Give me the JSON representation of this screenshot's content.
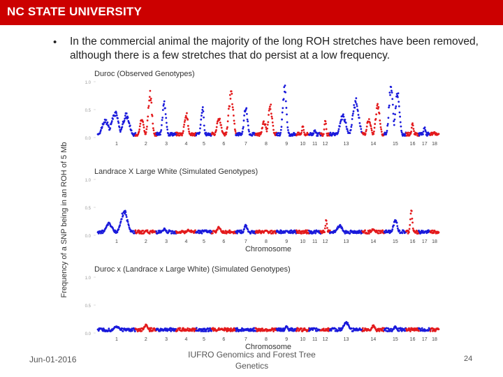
{
  "header": {
    "brand": "NC STATE UNIVERSITY",
    "color": "#cc0000"
  },
  "slide": {
    "bullet": "•",
    "text": "In the commercial animal the majority of the long ROH stretches have been removed, although there is a few stretches that do persist at a low frequency."
  },
  "footer": {
    "date": "Jun-01-2016",
    "conference": "IUFRO Genomics and Forest Tree Genetics",
    "page": "24"
  },
  "chart_data": {
    "type": "scatter",
    "ylabel": "Frequency of a SNP being in an ROH of 5 Mb",
    "colors": {
      "odd": "#1a1adb",
      "even": "#e31a1c"
    },
    "chromosomes": [
      "1",
      "2",
      "3",
      "4",
      "5",
      "6",
      "7",
      "8",
      "9",
      "10",
      "11",
      "12",
      "13",
      "14",
      "15",
      "16",
      "17",
      "18"
    ],
    "panels": [
      {
        "title": "Duroc (Observed Genotypes)",
        "xlabel": "",
        "ylim": [
          0,
          1
        ],
        "yticks": [
          "0.0",
          "0.5",
          "1.0"
        ],
        "peaks": [
          {
            "chr": 1,
            "pos": 0.2,
            "value": 0.32
          },
          {
            "chr": 1,
            "pos": 0.45,
            "value": 0.48
          },
          {
            "chr": 1,
            "pos": 0.75,
            "value": 0.42
          },
          {
            "chr": 2,
            "pos": 0.3,
            "value": 0.35
          },
          {
            "chr": 2,
            "pos": 0.7,
            "value": 0.8
          },
          {
            "chr": 3,
            "pos": 0.4,
            "value": 0.65
          },
          {
            "chr": 4,
            "pos": 0.5,
            "value": 0.45
          },
          {
            "chr": 5,
            "pos": 0.4,
            "value": 0.55
          },
          {
            "chr": 6,
            "pos": 0.3,
            "value": 0.35
          },
          {
            "chr": 6,
            "pos": 0.8,
            "value": 0.85
          },
          {
            "chr": 7,
            "pos": 0.5,
            "value": 0.55
          },
          {
            "chr": 8,
            "pos": 0.4,
            "value": 0.3
          },
          {
            "chr": 8,
            "pos": 0.7,
            "value": 0.6
          },
          {
            "chr": 9,
            "pos": 0.4,
            "value": 0.95
          },
          {
            "chr": 10,
            "pos": 0.5,
            "value": 0.2
          },
          {
            "chr": 11,
            "pos": 0.5,
            "value": 0.15
          },
          {
            "chr": 12,
            "pos": 0.5,
            "value": 0.35
          },
          {
            "chr": 13,
            "pos": 0.4,
            "value": 0.42
          },
          {
            "chr": 13,
            "pos": 0.8,
            "value": 0.7
          },
          {
            "chr": 14,
            "pos": 0.3,
            "value": 0.35
          },
          {
            "chr": 14,
            "pos": 0.7,
            "value": 0.65
          },
          {
            "chr": 15,
            "pos": 0.3,
            "value": 0.92
          },
          {
            "chr": 15,
            "pos": 0.6,
            "value": 0.85
          },
          {
            "chr": 16,
            "pos": 0.5,
            "value": 0.25
          },
          {
            "chr": 17,
            "pos": 0.5,
            "value": 0.2
          },
          {
            "chr": 18,
            "pos": 0.5,
            "value": 0.1
          }
        ]
      },
      {
        "title": "Landrace X Large White (Simulated Genotypes)",
        "xlabel": "Chromosome",
        "ylim": [
          0,
          1
        ],
        "yticks": [
          "0.0",
          "0.5",
          "1.0"
        ],
        "peaks": [
          {
            "chr": 1,
            "pos": 0.3,
            "value": 0.22
          },
          {
            "chr": 1,
            "pos": 0.7,
            "value": 0.45
          },
          {
            "chr": 2,
            "pos": 0.5,
            "value": 0.08
          },
          {
            "chr": 3,
            "pos": 0.4,
            "value": 0.12
          },
          {
            "chr": 4,
            "pos": 0.6,
            "value": 0.1
          },
          {
            "chr": 5,
            "pos": 0.5,
            "value": 0.08
          },
          {
            "chr": 6,
            "pos": 0.3,
            "value": 0.15
          },
          {
            "chr": 7,
            "pos": 0.5,
            "value": 0.18
          },
          {
            "chr": 8,
            "pos": 0.5,
            "value": 0.1
          },
          {
            "chr": 9,
            "pos": 0.5,
            "value": 0.08
          },
          {
            "chr": 12,
            "pos": 0.6,
            "value": 0.3
          },
          {
            "chr": 13,
            "pos": 0.3,
            "value": 0.18
          },
          {
            "chr": 14,
            "pos": 0.5,
            "value": 0.12
          },
          {
            "chr": 15,
            "pos": 0.5,
            "value": 0.3
          },
          {
            "chr": 16,
            "pos": 0.4,
            "value": 0.45
          },
          {
            "chr": 18,
            "pos": 0.5,
            "value": 0.08
          }
        ]
      },
      {
        "title": "Duroc x (Landrace x Large White) (Simulated Genotypes)",
        "xlabel": "Chromosome",
        "ylim": [
          0,
          1
        ],
        "yticks": [
          "0.0",
          "0.5",
          "1.0"
        ],
        "peaks": [
          {
            "chr": 1,
            "pos": 0.5,
            "value": 0.12
          },
          {
            "chr": 2,
            "pos": 0.5,
            "value": 0.16
          },
          {
            "chr": 3,
            "pos": 0.5,
            "value": 0.05
          },
          {
            "chr": 6,
            "pos": 0.4,
            "value": 0.08
          },
          {
            "chr": 9,
            "pos": 0.5,
            "value": 0.12
          },
          {
            "chr": 13,
            "pos": 0.5,
            "value": 0.2
          },
          {
            "chr": 14,
            "pos": 0.5,
            "value": 0.14
          },
          {
            "chr": 15,
            "pos": 0.5,
            "value": 0.12
          },
          {
            "chr": 16,
            "pos": 0.5,
            "value": 0.06
          }
        ]
      }
    ]
  }
}
